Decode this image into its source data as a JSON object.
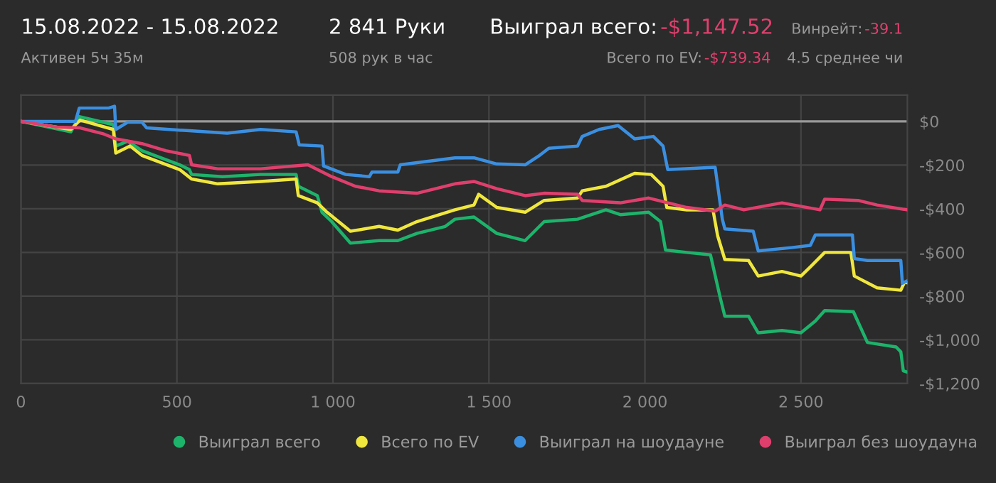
{
  "chart_data": {
    "type": "line",
    "title": "15.08.2022 - 15.08.2022",
    "subtitle": "Активен 5ч 35м",
    "annotations": [
      "2 841 Руки",
      "508 рук в час",
      "Выиграл всего:",
      "-$1,147.52",
      "Всего по EV:",
      "-$739.34",
      "Винрейт:",
      "-39.1",
      "4.5 среднее чи"
    ],
    "xlim": [
      0,
      2841
    ],
    "ylim": [
      -1200,
      120
    ],
    "xticks": [
      0,
      500,
      {
        "value": 1000,
        "label": "1 000"
      },
      {
        "value": 1500,
        "label": "1 500"
      },
      {
        "value": 2000,
        "label": "2 000"
      },
      {
        "value": 2500,
        "label": "2 500"
      }
    ],
    "yticks": [
      {
        "value": 0,
        "label": "$0"
      },
      {
        "value": -200,
        "label": "-$200"
      },
      {
        "value": -400,
        "label": "-$400"
      },
      {
        "value": -600,
        "label": "-$600"
      },
      {
        "value": -800,
        "label": "-$800"
      },
      {
        "value": -1000,
        "label": "-$1,000"
      },
      {
        "value": -1200,
        "label": "-$1,200"
      }
    ],
    "grid": true,
    "legend": "bottom",
    "ref_lines": [
      {
        "axis": "y",
        "value": 0,
        "color": "#9a9a9a"
      }
    ],
    "series": [
      {
        "name": "Выиграл всего",
        "color": "#1db36b",
        "x": [
          0,
          160,
          187,
          296,
          304,
          342,
          388,
          509,
          540,
          547,
          646,
          768,
          882,
          889,
          950,
          965,
          996,
          1056,
          1148,
          1208,
          1269,
          1360,
          1391,
          1452,
          1525,
          1616,
          1677,
          1784,
          1875,
          1921,
          2012,
          2050,
          2066,
          2134,
          2210,
          2241,
          2256,
          2332,
          2363,
          2439,
          2500,
          2546,
          2576,
          2668,
          2713,
          2805,
          2820,
          2828,
          2841
        ],
        "values": [
          0,
          -48,
          22,
          -15,
          -113,
          -91,
          -134,
          -199,
          -221,
          -243,
          -253,
          -243,
          -243,
          -297,
          -340,
          -416,
          -459,
          -557,
          -546,
          -546,
          -513,
          -481,
          -448,
          -438,
          -513,
          -546,
          -459,
          -448,
          -405,
          -427,
          -416,
          -459,
          -589,
          -600,
          -611,
          -806,
          -892,
          -892,
          -968,
          -957,
          -968,
          -914,
          -866,
          -871,
          -1012,
          -1033,
          -1055,
          -1142,
          -1148
        ]
      },
      {
        "name": "Всего по EV",
        "color": "#f0e73e",
        "x": [
          0,
          160,
          190,
          296,
          304,
          350,
          388,
          509,
          547,
          631,
          768,
          882,
          889,
          950,
          981,
          1056,
          1148,
          1208,
          1269,
          1391,
          1452,
          1467,
          1525,
          1616,
          1677,
          1784,
          1799,
          1875,
          1967,
          2020,
          2058,
          2070,
          2134,
          2218,
          2233,
          2256,
          2332,
          2363,
          2439,
          2500,
          2531,
          2576,
          2660,
          2671,
          2744,
          2820,
          2832,
          2841
        ],
        "values": [
          0,
          -37,
          6,
          -37,
          -145,
          -113,
          -156,
          -221,
          -264,
          -286,
          -275,
          -264,
          -340,
          -373,
          -416,
          -503,
          -481,
          -498,
          -459,
          -405,
          -383,
          -334,
          -394,
          -416,
          -362,
          -351,
          -318,
          -297,
          -238,
          -243,
          -297,
          -394,
          -405,
          -405,
          -524,
          -632,
          -637,
          -708,
          -687,
          -708,
          -665,
          -600,
          -600,
          -708,
          -762,
          -773,
          -736,
          -739
        ]
      },
      {
        "name": "Выиграл на шоудауне",
        "color": "#3b8fe0",
        "x": [
          0,
          175,
          187,
          281,
          300,
          304,
          342,
          388,
          403,
          540,
          661,
          768,
          882,
          892,
          965,
          970,
          1041,
          1117,
          1125,
          1208,
          1216,
          1391,
          1452,
          1525,
          1616,
          1662,
          1692,
          1784,
          1799,
          1853,
          1914,
          1967,
          2027,
          2058,
          2073,
          2225,
          2248,
          2256,
          2347,
          2363,
          2469,
          2530,
          2546,
          2665,
          2671,
          2713,
          2820,
          2825,
          2841
        ],
        "values": [
          0,
          0,
          61,
          61,
          69,
          -37,
          -4,
          -4,
          -30,
          -43,
          -54,
          -37,
          -48,
          -108,
          -113,
          -204,
          -243,
          -253,
          -232,
          -232,
          -199,
          -167,
          -167,
          -195,
          -199,
          -156,
          -123,
          -113,
          -69,
          -37,
          -19,
          -80,
          -69,
          -113,
          -221,
          -210,
          -448,
          -492,
          -503,
          -593,
          -578,
          -568,
          -520,
          -520,
          -628,
          -637,
          -637,
          -741,
          -730
        ]
      },
      {
        "name": "Выиграл без шоудауна",
        "color": "#df3f6d",
        "x": [
          0,
          114,
          190,
          266,
          304,
          388,
          464,
          540,
          547,
          631,
          768,
          920,
          996,
          1072,
          1148,
          1269,
          1391,
          1452,
          1525,
          1616,
          1677,
          1784,
          1799,
          1921,
          2012,
          2134,
          2225,
          2256,
          2317,
          2439,
          2561,
          2576,
          2683,
          2744,
          2841
        ],
        "values": [
          0,
          -26,
          -30,
          -58,
          -80,
          -102,
          -134,
          -156,
          -199,
          -217,
          -217,
          -199,
          -253,
          -297,
          -318,
          -329,
          -286,
          -275,
          -308,
          -340,
          -329,
          -334,
          -362,
          -373,
          -351,
          -394,
          -411,
          -383,
          -405,
          -373,
          -405,
          -356,
          -362,
          -383,
          -405
        ]
      }
    ]
  }
}
